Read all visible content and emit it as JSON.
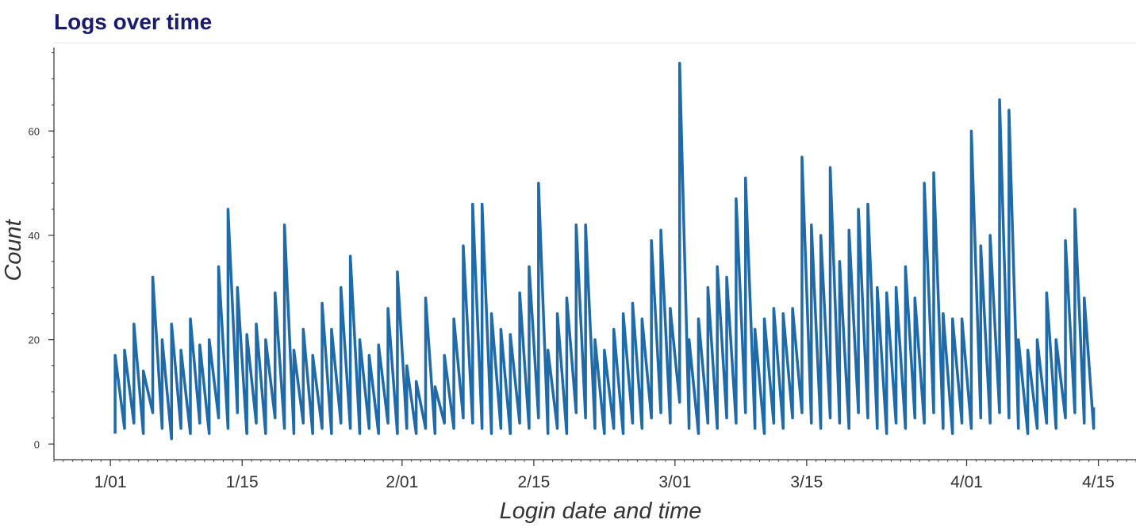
{
  "chart_data": {
    "type": "line",
    "title": "Logs over time",
    "xlabel": "Login date and time",
    "ylabel": "Count",
    "x_range": [
      "2019-12-26",
      "2020-04-19"
    ],
    "ylim": [
      -3,
      76
    ],
    "x_ticks": [
      {
        "date": "2020-01-01",
        "label": "1/01"
      },
      {
        "date": "2020-01-15",
        "label": "1/15"
      },
      {
        "date": "2020-02-01",
        "label": "2/01"
      },
      {
        "date": "2020-02-15",
        "label": "2/15"
      },
      {
        "date": "2020-03-01",
        "label": "3/01"
      },
      {
        "date": "2020-03-15",
        "label": "3/15"
      },
      {
        "date": "2020-04-01",
        "label": "4/01"
      },
      {
        "date": "2020-04-15",
        "label": "4/15"
      }
    ],
    "y_ticks": [
      0,
      20,
      40,
      60
    ],
    "y_minor_step": 5,
    "grid": false,
    "series": [
      {
        "color": "#1f6aa8",
        "points": [
          [
            "2020-01-01",
            2
          ],
          [
            "2020-01-01",
            17
          ],
          [
            "2020-01-02",
            3
          ],
          [
            "2020-01-02",
            18
          ],
          [
            "2020-01-03",
            4
          ],
          [
            "2020-01-03",
            23
          ],
          [
            "2020-01-04",
            2
          ],
          [
            "2020-01-04",
            14
          ],
          [
            "2020-01-05",
            6
          ],
          [
            "2020-01-05",
            32
          ],
          [
            "2020-01-06",
            3
          ],
          [
            "2020-01-06",
            20
          ],
          [
            "2020-01-07",
            1
          ],
          [
            "2020-01-07",
            23
          ],
          [
            "2020-01-08",
            3
          ],
          [
            "2020-01-08",
            18
          ],
          [
            "2020-01-09",
            2
          ],
          [
            "2020-01-09",
            24
          ],
          [
            "2020-01-10",
            4
          ],
          [
            "2020-01-10",
            19
          ],
          [
            "2020-01-11",
            2
          ],
          [
            "2020-01-11",
            20
          ],
          [
            "2020-01-12",
            5
          ],
          [
            "2020-01-12",
            34
          ],
          [
            "2020-01-13",
            3
          ],
          [
            "2020-01-13",
            45
          ],
          [
            "2020-01-14",
            6
          ],
          [
            "2020-01-14",
            30
          ],
          [
            "2020-01-15",
            2
          ],
          [
            "2020-01-15",
            21
          ],
          [
            "2020-01-16",
            4
          ],
          [
            "2020-01-16",
            23
          ],
          [
            "2020-01-17",
            2
          ],
          [
            "2020-01-17",
            20
          ],
          [
            "2020-01-18",
            5
          ],
          [
            "2020-01-18",
            29
          ],
          [
            "2020-01-19",
            3
          ],
          [
            "2020-01-19",
            42
          ],
          [
            "2020-01-20",
            2
          ],
          [
            "2020-01-20",
            18
          ],
          [
            "2020-01-21",
            4
          ],
          [
            "2020-01-21",
            22
          ],
          [
            "2020-01-22",
            2
          ],
          [
            "2020-01-22",
            17
          ],
          [
            "2020-01-23",
            3
          ],
          [
            "2020-01-23",
            27
          ],
          [
            "2020-01-24",
            2
          ],
          [
            "2020-01-24",
            22
          ],
          [
            "2020-01-25",
            4
          ],
          [
            "2020-01-25",
            30
          ],
          [
            "2020-01-26",
            3
          ],
          [
            "2020-01-26",
            36
          ],
          [
            "2020-01-27",
            2
          ],
          [
            "2020-01-27",
            20
          ],
          [
            "2020-01-28",
            3
          ],
          [
            "2020-01-28",
            17
          ],
          [
            "2020-01-29",
            2
          ],
          [
            "2020-01-29",
            19
          ],
          [
            "2020-01-30",
            4
          ],
          [
            "2020-01-30",
            26
          ],
          [
            "2020-01-31",
            2
          ],
          [
            "2020-01-31",
            33
          ],
          [
            "2020-02-01",
            3
          ],
          [
            "2020-02-01",
            15
          ],
          [
            "2020-02-02",
            2
          ],
          [
            "2020-02-02",
            12
          ],
          [
            "2020-02-03",
            3
          ],
          [
            "2020-02-03",
            28
          ],
          [
            "2020-02-04",
            2
          ],
          [
            "2020-02-04",
            11
          ],
          [
            "2020-02-05",
            4
          ],
          [
            "2020-02-05",
            17
          ],
          [
            "2020-02-06",
            3
          ],
          [
            "2020-02-06",
            24
          ],
          [
            "2020-02-07",
            5
          ],
          [
            "2020-02-07",
            38
          ],
          [
            "2020-02-08",
            4
          ],
          [
            "2020-02-08",
            46
          ],
          [
            "2020-02-09",
            3
          ],
          [
            "2020-02-09",
            46
          ],
          [
            "2020-02-10",
            2
          ],
          [
            "2020-02-10",
            25
          ],
          [
            "2020-02-11",
            3
          ],
          [
            "2020-02-11",
            22
          ],
          [
            "2020-02-12",
            2
          ],
          [
            "2020-02-12",
            21
          ],
          [
            "2020-02-13",
            4
          ],
          [
            "2020-02-13",
            29
          ],
          [
            "2020-02-14",
            3
          ],
          [
            "2020-02-14",
            34
          ],
          [
            "2020-02-15",
            5
          ],
          [
            "2020-02-15",
            50
          ],
          [
            "2020-02-16",
            2
          ],
          [
            "2020-02-16",
            18
          ],
          [
            "2020-02-17",
            3
          ],
          [
            "2020-02-17",
            25
          ],
          [
            "2020-02-18",
            2
          ],
          [
            "2020-02-18",
            28
          ],
          [
            "2020-02-19",
            6
          ],
          [
            "2020-02-19",
            42
          ],
          [
            "2020-02-20",
            5
          ],
          [
            "2020-02-20",
            42
          ],
          [
            "2020-02-21",
            3
          ],
          [
            "2020-02-21",
            20
          ],
          [
            "2020-02-22",
            2
          ],
          [
            "2020-02-22",
            18
          ],
          [
            "2020-02-23",
            3
          ],
          [
            "2020-02-23",
            22
          ],
          [
            "2020-02-24",
            2
          ],
          [
            "2020-02-24",
            25
          ],
          [
            "2020-02-25",
            4
          ],
          [
            "2020-02-25",
            27
          ],
          [
            "2020-02-26",
            3
          ],
          [
            "2020-02-26",
            24
          ],
          [
            "2020-02-27",
            5
          ],
          [
            "2020-02-27",
            39
          ],
          [
            "2020-02-28",
            6
          ],
          [
            "2020-02-28",
            41
          ],
          [
            "2020-02-29",
            4
          ],
          [
            "2020-02-29",
            26
          ],
          [
            "2020-03-01",
            8
          ],
          [
            "2020-03-01",
            73
          ],
          [
            "2020-03-02",
            3
          ],
          [
            "2020-03-02",
            20
          ],
          [
            "2020-03-03",
            2
          ],
          [
            "2020-03-03",
            24
          ],
          [
            "2020-03-04",
            4
          ],
          [
            "2020-03-04",
            30
          ],
          [
            "2020-03-05",
            3
          ],
          [
            "2020-03-05",
            34
          ],
          [
            "2020-03-06",
            5
          ],
          [
            "2020-03-06",
            32
          ],
          [
            "2020-03-07",
            4
          ],
          [
            "2020-03-07",
            47
          ],
          [
            "2020-03-08",
            6
          ],
          [
            "2020-03-08",
            51
          ],
          [
            "2020-03-09",
            3
          ],
          [
            "2020-03-09",
            22
          ],
          [
            "2020-03-10",
            2
          ],
          [
            "2020-03-10",
            24
          ],
          [
            "2020-03-11",
            4
          ],
          [
            "2020-03-11",
            26
          ],
          [
            "2020-03-12",
            3
          ],
          [
            "2020-03-12",
            25
          ],
          [
            "2020-03-13",
            5
          ],
          [
            "2020-03-13",
            26
          ],
          [
            "2020-03-14",
            6
          ],
          [
            "2020-03-14",
            55
          ],
          [
            "2020-03-15",
            4
          ],
          [
            "2020-03-15",
            42
          ],
          [
            "2020-03-16",
            3
          ],
          [
            "2020-03-16",
            40
          ],
          [
            "2020-03-17",
            5
          ],
          [
            "2020-03-17",
            53
          ],
          [
            "2020-03-18",
            4
          ],
          [
            "2020-03-18",
            35
          ],
          [
            "2020-03-19",
            3
          ],
          [
            "2020-03-19",
            41
          ],
          [
            "2020-03-20",
            6
          ],
          [
            "2020-03-20",
            45
          ],
          [
            "2020-03-21",
            5
          ],
          [
            "2020-03-21",
            46
          ],
          [
            "2020-03-22",
            3
          ],
          [
            "2020-03-22",
            30
          ],
          [
            "2020-03-23",
            2
          ],
          [
            "2020-03-23",
            29
          ],
          [
            "2020-03-24",
            4
          ],
          [
            "2020-03-24",
            30
          ],
          [
            "2020-03-25",
            3
          ],
          [
            "2020-03-25",
            34
          ],
          [
            "2020-03-26",
            5
          ],
          [
            "2020-03-26",
            28
          ],
          [
            "2020-03-27",
            4
          ],
          [
            "2020-03-27",
            50
          ],
          [
            "2020-03-28",
            6
          ],
          [
            "2020-03-28",
            52
          ],
          [
            "2020-03-29",
            3
          ],
          [
            "2020-03-29",
            25
          ],
          [
            "2020-03-30",
            2
          ],
          [
            "2020-03-30",
            24
          ],
          [
            "2020-03-31",
            4
          ],
          [
            "2020-03-31",
            24
          ],
          [
            "2020-04-01",
            3
          ],
          [
            "2020-04-01",
            60
          ],
          [
            "2020-04-02",
            5
          ],
          [
            "2020-04-02",
            38
          ],
          [
            "2020-04-03",
            4
          ],
          [
            "2020-04-03",
            40
          ],
          [
            "2020-04-04",
            6
          ],
          [
            "2020-04-04",
            66
          ],
          [
            "2020-04-05",
            5
          ],
          [
            "2020-04-05",
            64
          ],
          [
            "2020-04-06",
            3
          ],
          [
            "2020-04-06",
            20
          ],
          [
            "2020-04-07",
            2
          ],
          [
            "2020-04-07",
            18
          ],
          [
            "2020-04-08",
            3
          ],
          [
            "2020-04-08",
            20
          ],
          [
            "2020-04-09",
            4
          ],
          [
            "2020-04-09",
            29
          ],
          [
            "2020-04-10",
            3
          ],
          [
            "2020-04-10",
            20
          ],
          [
            "2020-04-11",
            5
          ],
          [
            "2020-04-11",
            39
          ],
          [
            "2020-04-12",
            6
          ],
          [
            "2020-04-12",
            45
          ],
          [
            "2020-04-13",
            4
          ],
          [
            "2020-04-13",
            28
          ],
          [
            "2020-04-14",
            3
          ],
          [
            "2020-04-14",
            7
          ]
        ]
      }
    ]
  }
}
